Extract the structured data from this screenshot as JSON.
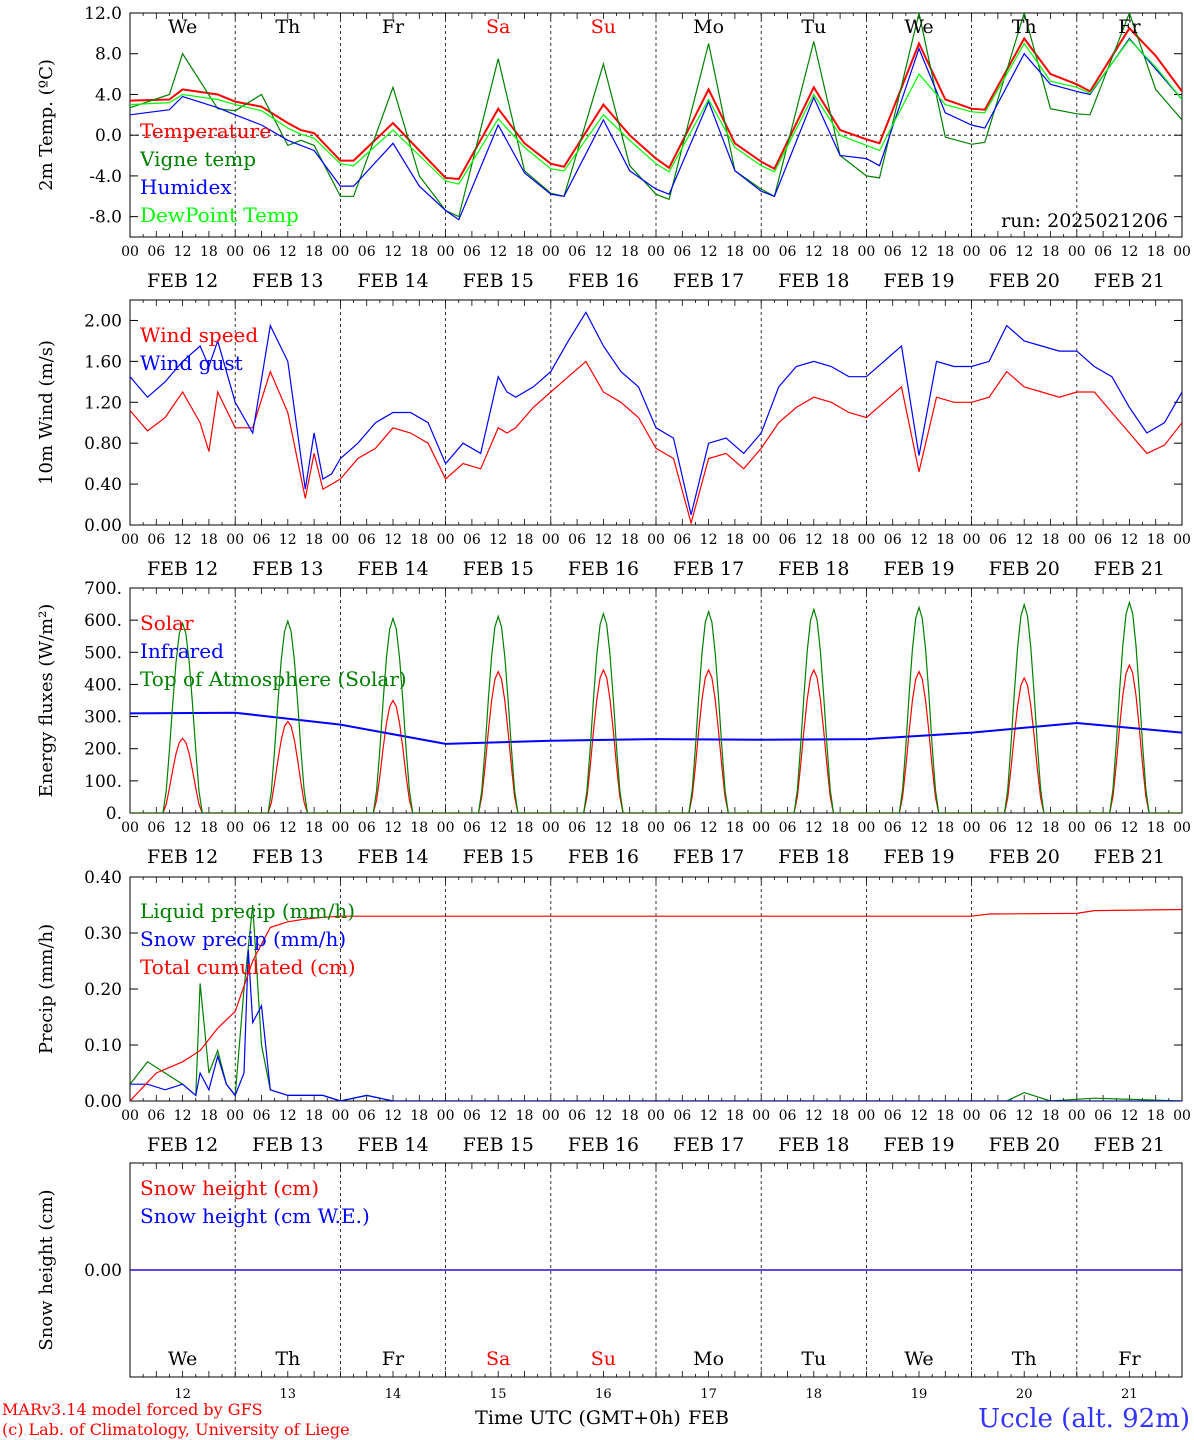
{
  "run_label": "run: 2025021206",
  "footer": {
    "credit_line1": "MARv3.14 model forced by GFS",
    "credit_line2": "(c) Lab. of Climatology, University of Liege",
    "axis_title": "Time UTC (GMT+0h)",
    "month": "FEB",
    "station": "Uccle (alt. 92m)"
  },
  "colors": {
    "red": "#ff0000",
    "dark_green": "#008000",
    "blue": "#0000ff",
    "light_green": "#00ff00",
    "footer_blue": "#3333ff"
  },
  "time_axis": {
    "days": [
      "FEB 12",
      "FEB 13",
      "FEB 14",
      "FEB 15",
      "FEB 16",
      "FEB 17",
      "FEB 18",
      "FEB 19",
      "FEB 20",
      "FEB 21"
    ],
    "hours": [
      "00",
      "06",
      "12",
      "18"
    ],
    "end_hour": "00",
    "weekdays": [
      "We",
      "Th",
      "Fr",
      "Sa",
      "Su",
      "Mo",
      "Tu",
      "We",
      "Th",
      "Fr"
    ],
    "weekend_index": [
      3,
      4
    ],
    "day_numbers": [
      "12",
      "13",
      "14",
      "15",
      "16",
      "17",
      "18",
      "19",
      "20",
      "21"
    ]
  },
  "chart_data": [
    {
      "type": "line",
      "id": "temperature",
      "ylabel": "2m Temp. (ºC)",
      "ylim": [
        -10,
        12
      ],
      "yticks": [
        "-8.0",
        "-4.0",
        "0.0",
        "4.0",
        "8.0",
        "12.0"
      ],
      "zero_line": true,
      "legend_position": "top-left",
      "x": [
        0,
        9,
        12,
        20,
        24,
        30,
        36,
        39,
        42,
        48,
        51,
        60,
        66,
        72,
        75,
        84,
        90,
        96,
        99,
        108,
        114,
        120,
        123,
        132,
        138,
        144,
        147,
        156,
        162,
        168,
        171,
        180,
        186,
        192,
        195,
        204,
        210,
        216,
        219,
        228,
        234,
        240
      ],
      "series": [
        {
          "name": "Temperature",
          "color": "#ff0000",
          "values": [
            3.4,
            3.5,
            4.5,
            4.0,
            3.3,
            2.8,
            1.2,
            0.5,
            0.2,
            -2.5,
            -2.5,
            1.2,
            -1.5,
            -4.2,
            -4.3,
            2.6,
            -0.8,
            -2.8,
            -3.1,
            3.0,
            0.0,
            -2.3,
            -3.2,
            4.5,
            -0.8,
            -2.6,
            -3.3,
            4.7,
            0.5,
            -0.4,
            -0.8,
            9.0,
            3.5,
            2.6,
            2.5,
            9.5,
            6.0,
            5.0,
            4.3,
            10.5,
            7.8,
            4.3
          ]
        },
        {
          "name": "Vigne temp",
          "color": "#008000",
          "values": [
            2.7,
            4.0,
            8.0,
            2.6,
            2.4,
            4.0,
            -1.0,
            -0.5,
            -1.0,
            -6.0,
            -6.0,
            4.7,
            -4.0,
            -7.4,
            -8.0,
            7.5,
            -3.5,
            -5.7,
            -6.0,
            7.0,
            -3.0,
            -5.8,
            -6.3,
            9.0,
            -3.5,
            -5.3,
            -6.0,
            9.2,
            -2.0,
            -4.0,
            -4.2,
            12.0,
            -0.2,
            -0.9,
            -0.7,
            12.0,
            2.6,
            2.1,
            2.0,
            12.0,
            4.5,
            1.5
          ]
        },
        {
          "name": "Humidex",
          "color": "#0000ff",
          "values": [
            2.0,
            2.5,
            3.8,
            2.7,
            2.0,
            1.0,
            -0.5,
            -1.0,
            -1.5,
            -5.0,
            -5.0,
            -0.8,
            -5.0,
            -7.4,
            -8.3,
            1.0,
            -3.7,
            -5.8,
            -6.0,
            1.5,
            -3.5,
            -5.3,
            -5.8,
            3.3,
            -3.5,
            -5.5,
            -6.0,
            3.7,
            -2.0,
            -2.3,
            -3.0,
            8.5,
            2.2,
            1.0,
            0.7,
            8.0,
            5.0,
            4.3,
            4.0,
            9.5,
            6.5,
            3.5
          ]
        },
        {
          "name": "DewPoint Temp",
          "color": "#00ff00",
          "values": [
            3.0,
            3.2,
            4.0,
            3.5,
            3.0,
            2.4,
            0.7,
            0.1,
            -0.3,
            -2.8,
            -3.0,
            0.5,
            -2.0,
            -4.5,
            -4.8,
            1.6,
            -1.2,
            -3.3,
            -3.5,
            2.0,
            -0.5,
            -2.8,
            -3.6,
            3.5,
            -1.2,
            -3.0,
            -3.6,
            4.0,
            0.0,
            -1.0,
            -1.5,
            6.0,
            3.0,
            2.3,
            2.2,
            9.0,
            5.3,
            4.7,
            4.1,
            9.4,
            6.7,
            3.5
          ]
        }
      ]
    },
    {
      "type": "line",
      "id": "wind",
      "ylabel": "10m Wind (m/s)",
      "ylim": [
        0,
        2.2
      ],
      "yticks": [
        "0.00",
        "0.40",
        "0.80",
        "1.20",
        "1.60",
        "2.00"
      ],
      "legend_position": "top-left",
      "x": [
        0,
        4,
        8,
        12,
        16,
        18,
        20,
        24,
        28,
        32,
        36,
        40,
        42,
        44,
        46,
        48,
        52,
        56,
        60,
        64,
        68,
        72,
        76,
        80,
        84,
        86,
        88,
        92,
        96,
        100,
        104,
        108,
        112,
        116,
        120,
        124,
        128,
        132,
        136,
        140,
        144,
        148,
        152,
        156,
        160,
        164,
        168,
        172,
        176,
        180,
        184,
        188,
        192,
        196,
        200,
        204,
        208,
        212,
        216,
        220,
        224,
        228,
        232,
        236,
        240
      ],
      "series": [
        {
          "name": "Wind speed",
          "color": "#ff0000",
          "values": [
            1.12,
            0.92,
            1.05,
            1.3,
            1.0,
            0.72,
            1.3,
            0.95,
            0.95,
            1.5,
            1.1,
            0.26,
            0.7,
            0.35,
            0.4,
            0.45,
            0.65,
            0.75,
            0.95,
            0.9,
            0.8,
            0.45,
            0.6,
            0.55,
            0.95,
            0.9,
            0.95,
            1.15,
            1.3,
            1.45,
            1.6,
            1.3,
            1.2,
            1.05,
            0.75,
            0.65,
            0.02,
            0.65,
            0.7,
            0.55,
            0.75,
            1.0,
            1.15,
            1.25,
            1.2,
            1.1,
            1.05,
            1.2,
            1.35,
            0.52,
            1.25,
            1.2,
            1.2,
            1.25,
            1.5,
            1.35,
            1.3,
            1.25,
            1.3,
            1.3,
            1.1,
            0.9,
            0.7,
            0.78,
            1.0
          ]
        },
        {
          "name": "Wind gust",
          "color": "#0000ff",
          "values": [
            1.45,
            1.25,
            1.4,
            1.6,
            1.75,
            1.55,
            1.8,
            1.2,
            0.9,
            1.95,
            1.6,
            0.35,
            0.9,
            0.45,
            0.5,
            0.65,
            0.8,
            1.0,
            1.1,
            1.1,
            1.0,
            0.6,
            0.8,
            0.7,
            1.45,
            1.3,
            1.25,
            1.35,
            1.5,
            1.8,
            2.08,
            1.75,
            1.5,
            1.35,
            0.95,
            0.85,
            0.1,
            0.8,
            0.85,
            0.7,
            0.9,
            1.35,
            1.55,
            1.6,
            1.55,
            1.45,
            1.45,
            1.6,
            1.75,
            0.68,
            1.6,
            1.55,
            1.55,
            1.6,
            1.95,
            1.8,
            1.75,
            1.7,
            1.7,
            1.55,
            1.45,
            1.15,
            0.9,
            1.0,
            1.3
          ]
        }
      ]
    },
    {
      "type": "line",
      "id": "energy",
      "ylabel": "Energy fluxes (W/m²)",
      "ylim": [
        0,
        700
      ],
      "yticks": [
        "0.",
        "100.",
        "200.",
        "300.",
        "400.",
        "500.",
        "600.",
        "700."
      ],
      "legend_position": "top-left",
      "x": [
        0,
        24,
        48,
        72,
        96,
        120,
        144,
        168,
        192,
        216,
        240
      ],
      "sunrise_hour": 7.5,
      "sunset_hour": 16.5,
      "series": [
        {
          "name": "Solar",
          "color": "#ff0000",
          "peaks": [
            232,
            285,
            350,
            440,
            445,
            445,
            445,
            440,
            420,
            460
          ]
        },
        {
          "name": "Infrared",
          "color": "#0000ff",
          "values": [
            310,
            312,
            275,
            215,
            225,
            230,
            228,
            230,
            250,
            280,
            250
          ]
        },
        {
          "name": "Top of Atmosphere (Solar)",
          "color": "#008000",
          "peaks": [
            590,
            597,
            605,
            612,
            620,
            627,
            633,
            640,
            648,
            655
          ]
        }
      ]
    },
    {
      "type": "line",
      "id": "precip",
      "ylabel": "Precip (mm/h)",
      "ylim": [
        0,
        0.4
      ],
      "yticks": [
        "0.00",
        "0.10",
        "0.20",
        "0.30",
        "0.40"
      ],
      "legend_position": "top-left",
      "series": [
        {
          "name": "Liquid precip (mm/h)",
          "color": "#008000",
          "x": [
            0,
            4,
            8,
            12,
            15,
            16,
            18,
            20,
            22,
            24,
            26,
            28,
            30,
            32,
            36,
            44,
            48,
            54,
            60,
            200,
            204,
            210,
            220,
            240
          ],
          "values": [
            0.03,
            0.07,
            0.05,
            0.03,
            0.01,
            0.21,
            0.05,
            0.09,
            0.03,
            0.01,
            0.2,
            0.35,
            0.1,
            0.02,
            0.01,
            0.01,
            0.0,
            0.01,
            0.0,
            0.0,
            0.015,
            0.0,
            0.005,
            0.0
          ]
        },
        {
          "name": "Snow precip (mm/h)",
          "color": "#0000ff",
          "x": [
            0,
            4,
            8,
            12,
            15,
            16,
            18,
            20,
            22,
            24,
            26,
            27,
            28,
            30,
            32,
            36,
            44,
            48,
            54,
            60,
            240
          ],
          "values": [
            0.03,
            0.03,
            0.02,
            0.03,
            0.01,
            0.05,
            0.02,
            0.08,
            0.03,
            0.01,
            0.05,
            0.27,
            0.14,
            0.17,
            0.02,
            0.01,
            0.01,
            0.0,
            0.01,
            0.0,
            0.0
          ]
        },
        {
          "name": "Total cumulated (cm)",
          "color": "#ff0000",
          "x": [
            0,
            6,
            12,
            16,
            20,
            24,
            28,
            32,
            36,
            40,
            44,
            48,
            192,
            196,
            216,
            220,
            240
          ],
          "values": [
            0.0,
            0.05,
            0.07,
            0.09,
            0.13,
            0.16,
            0.25,
            0.31,
            0.32,
            0.325,
            0.328,
            0.33,
            0.33,
            0.334,
            0.335,
            0.34,
            0.342
          ]
        }
      ]
    },
    {
      "type": "line",
      "id": "snow",
      "ylabel": "Snow height (cm)",
      "ylim": [
        -1,
        1
      ],
      "yticks": [
        "0.00"
      ],
      "legend_position": "top-left",
      "x": [
        0,
        240
      ],
      "series": [
        {
          "name": "Snow height (cm)",
          "color": "#ff0000",
          "values": [
            0,
            0
          ]
        },
        {
          "name": "Snow height (cm W.E.)",
          "color": "#0000ff",
          "values": [
            0,
            0
          ]
        }
      ]
    }
  ]
}
